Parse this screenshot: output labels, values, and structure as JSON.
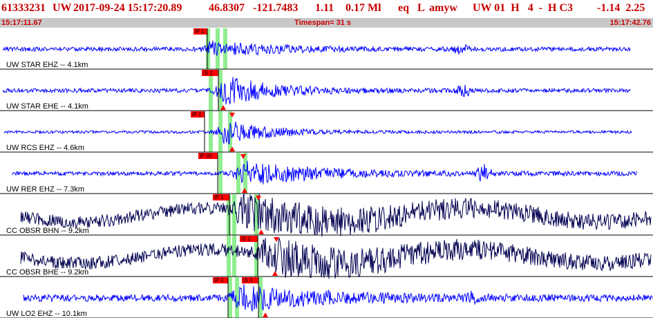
{
  "header": {
    "event_id": "61333231",
    "network": "UW",
    "origin_time": "2017-09-24 15:17:20.89",
    "latitude": "46.8307",
    "longitude": "-121.7483",
    "depth": "1.11",
    "magnitude": "0.17 Ml",
    "event_type": "eq",
    "location_type": "L",
    "author": "amyw",
    "solution_info": "UW 01  H   4  -  H C3",
    "extra_values": "-1.14  2.25"
  },
  "timebar": {
    "start_time": "15:17:11.67",
    "timespan": "Timespan=  31 s",
    "end_time": "15:17:42.76"
  },
  "colors": {
    "header_text": "#c80000",
    "timebar_bg": "#c8c8c8",
    "trace_uw": "#0000ff",
    "trace_cc": "#000050",
    "pick_marker": "#ff0000",
    "pick_window": "#90ee90"
  },
  "channels": [
    {
      "label": "UW STAR EHZ -- 4.1km",
      "picks": [
        {
          "label": "iP 1"
        }
      ]
    },
    {
      "label": "UW STAR EHE -- 4.1km",
      "picks": [
        {
          "label": "iS 1"
        }
      ]
    },
    {
      "label": "UW RCS EHZ -- 4.6km",
      "picks": [
        {
          "label": "iP 1"
        }
      ]
    },
    {
      "label": "UW RER EHZ -- 7.3km",
      "picks": [
        {
          "label": "iP 00"
        }
      ]
    },
    {
      "label": "CC OBSR BHN -- 9.2km",
      "picks": [
        {
          "label": "iP 1"
        }
      ]
    },
    {
      "label": "CC OBSR BHE -- 9.2km",
      "picks": [
        {
          "label": "iS 1"
        }
      ]
    },
    {
      "label": "UW LO2 EHZ -- 10.1km",
      "picks": [
        {
          "label": "iP 1"
        },
        {
          "label": "iS 1"
        }
      ]
    }
  ]
}
